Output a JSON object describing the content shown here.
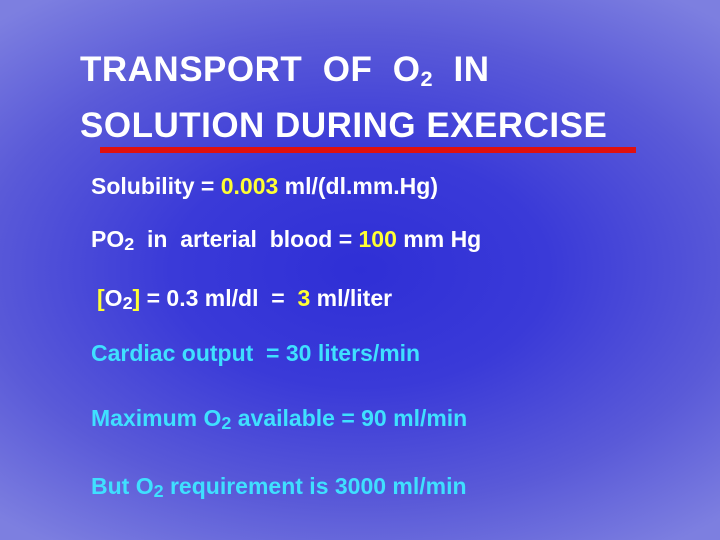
{
  "title": {
    "line1_a": "TRANSPORT  OF  O",
    "line1_sub": "2",
    "line1_b": "  IN",
    "line2": "SOLUTION DURING EXERCISE"
  },
  "colors": {
    "background": "#3535d6",
    "title_text": "#ffffff",
    "rule": "#e01010",
    "body_text": "#ffffff",
    "highlight": "#ffff33",
    "cyan_text": "#3fe0ff"
  },
  "lines": {
    "solubility": {
      "prefix": "Solubility = ",
      "value": "0.003",
      "suffix": " ml/(dl.mm.Hg)"
    },
    "po2": {
      "a": "PO",
      "sub": "2",
      "b": "  in  arterial  blood = ",
      "value": "100",
      "suffix": " mm Hg"
    },
    "conc": {
      "a": "[",
      "b": "O",
      "sub": "2",
      "c": "]",
      "d": " = 0.3 ml/dl  =  ",
      "value": "3",
      "e": " ml/liter"
    },
    "cardiac": "Cardiac output  = 30 liters/min",
    "maxo2": {
      "a": "Maximum O",
      "sub": "2",
      "b": " available = 90 ml/min"
    },
    "req": {
      "a": "But O",
      "sub": "2",
      "b": " requirement is 3000 ml/min"
    }
  }
}
